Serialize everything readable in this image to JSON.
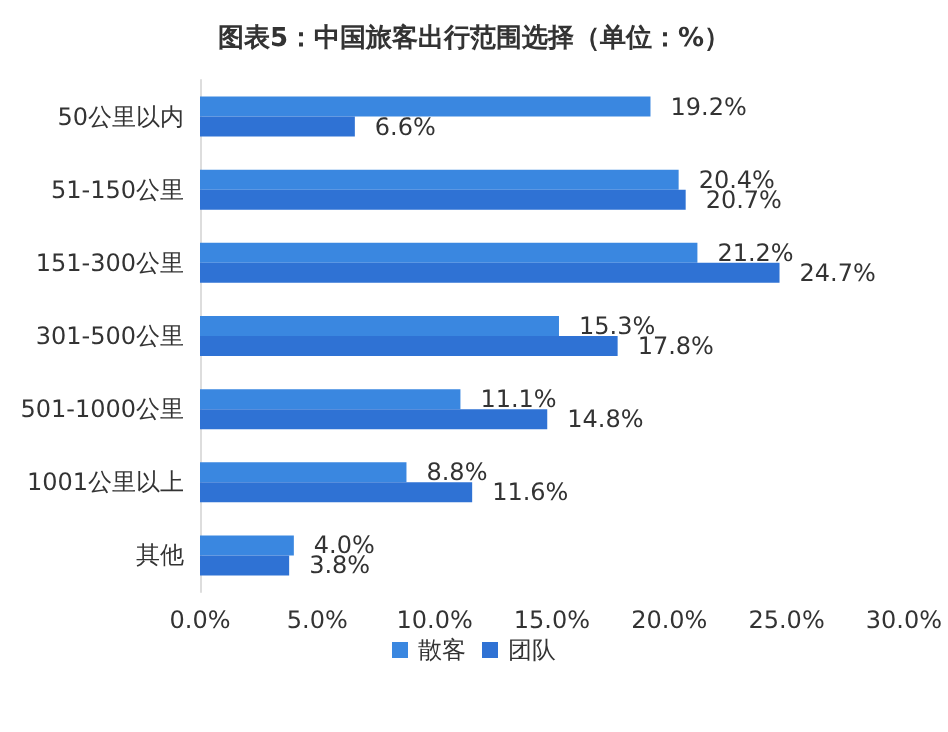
{
  "chart_data": {
    "type": "bar",
    "orientation": "horizontal",
    "title": "图表5：中国旅客出行范围选择（单位：%）",
    "categories": [
      "50公里以内",
      "51-150公里",
      "151-300公里",
      "301-500公里",
      "501-1000公里",
      "1001公里以上",
      "其他"
    ],
    "series": [
      {
        "name": "散客",
        "color": "#3a87e0",
        "values": [
          19.2,
          20.4,
          21.2,
          15.3,
          11.1,
          8.8,
          4.0
        ],
        "value_labels": [
          "19.2%",
          "20.4%",
          "21.2%",
          "15.3%",
          "11.1%",
          "8.8%",
          "4.0%"
        ]
      },
      {
        "name": "团队",
        "color": "#2f72d4",
        "values": [
          6.6,
          20.7,
          24.7,
          17.8,
          14.8,
          11.6,
          3.8
        ],
        "value_labels": [
          "6.6%",
          "20.7%",
          "24.7%",
          "17.8%",
          "14.8%",
          "11.6%",
          "3.8%"
        ]
      }
    ],
    "xlim": [
      0,
      30
    ],
    "xticks": [
      {
        "value": 0,
        "label": "0.0%"
      },
      {
        "value": 5,
        "label": "5.0%"
      },
      {
        "value": 10,
        "label": "10.0%"
      },
      {
        "value": 15,
        "label": "15.0%"
      },
      {
        "value": 20,
        "label": "20.0%"
      },
      {
        "value": 25,
        "label": "25.0%"
      },
      {
        "value": 30,
        "label": "30.0%"
      }
    ],
    "grid": false,
    "legend": "bottom"
  }
}
